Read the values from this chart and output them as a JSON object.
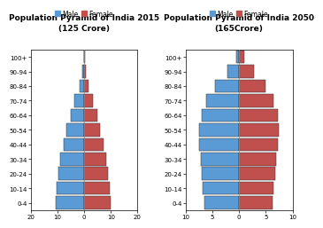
{
  "title1": "Population Pyramid of India 2015\n(125 Crore)",
  "title2": "Population Pyramid of India 2050\n(165Crore)",
  "age_groups": [
    "0-4",
    "10-14",
    "20-24",
    "30-34",
    "40-44",
    "50-54",
    "60-64",
    "70-74",
    "80-84",
    "90-94",
    "100+"
  ],
  "male_2015": [
    10.5,
    10.2,
    9.5,
    8.8,
    7.8,
    6.5,
    5.0,
    3.5,
    1.8,
    0.6,
    0.15
  ],
  "female_2015": [
    9.8,
    9.5,
    8.8,
    8.2,
    7.2,
    6.0,
    4.8,
    3.3,
    1.7,
    0.6,
    0.15
  ],
  "male_2050": [
    6.5,
    6.8,
    7.0,
    7.2,
    7.5,
    7.5,
    7.0,
    6.2,
    4.5,
    2.2,
    0.6
  ],
  "female_2050": [
    6.2,
    6.5,
    6.8,
    7.0,
    7.3,
    7.5,
    7.2,
    6.5,
    5.0,
    2.8,
    0.9
  ],
  "male_color": "#5B9BD5",
  "female_color": "#C0504D",
  "bar_edge_color": "#333333",
  "xlim1": 20,
  "xlim2": 10,
  "xtick_labels1": [
    "20",
    "10",
    "0",
    "10",
    "20"
  ],
  "xtick_labels2": [
    "10",
    "5",
    "0",
    "5",
    "10"
  ],
  "xtick_pos1": [
    -20,
    -10,
    0,
    10,
    20
  ],
  "xtick_pos2": [
    -10,
    -5,
    0,
    5,
    10
  ],
  "title_fontsize": 6.5,
  "tick_fontsize": 5.0,
  "legend_fontsize": 5.5
}
